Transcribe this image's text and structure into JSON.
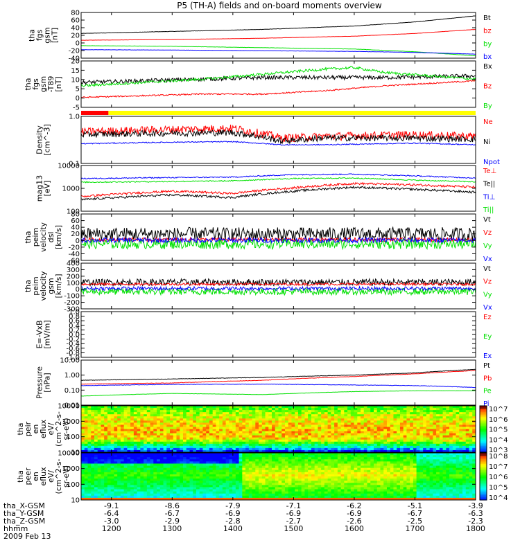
{
  "title": "P5 (TH-A) fields and on-board moments overview",
  "colors": {
    "black": "#000000",
    "red": "#ff0000",
    "green": "#00e000",
    "blue": "#0000ff",
    "yellow": "#ffff00"
  },
  "chart_data": {
    "type": "line",
    "x_range": [
      1150,
      1800
    ],
    "x_ticks": [
      "1200",
      "1300",
      "1400",
      "1500",
      "1600",
      "1700",
      "1800"
    ],
    "panels": [
      {
        "ylabel": [
          "tha",
          "fgs",
          "gsm",
          "[nT]"
        ],
        "yticks": [
          "80",
          "60",
          "40",
          "20",
          "0",
          "-20",
          "-40"
        ],
        "ylim": [
          -45,
          90
        ],
        "scale": "linear",
        "series": [
          {
            "name": "Bt",
            "color": "#000000",
            "noise": 0.4,
            "x": [
              1150,
              1300,
              1450,
              1600,
              1700,
              1800
            ],
            "y": [
              28,
              34,
              40,
              50,
              62,
              80
            ]
          },
          {
            "name": "bz",
            "color": "#ff0000",
            "noise": 0.3,
            "x": [
              1150,
              1300,
              1450,
              1600,
              1700,
              1800
            ],
            "y": [
              8,
              10,
              14,
              20,
              28,
              40
            ]
          },
          {
            "name": "by",
            "color": "#00e000",
            "noise": 0.3,
            "x": [
              1150,
              1300,
              1450,
              1600,
              1700,
              1800
            ],
            "y": [
              -8,
              -10,
              -14,
              -18,
              -26,
              -38
            ]
          },
          {
            "name": "bx",
            "color": "#0000ff",
            "noise": 0.3,
            "x": [
              1150,
              1300,
              1450,
              1600,
              1700,
              1800
            ],
            "y": [
              -20,
              -21,
              -23,
              -25,
              -28,
              -33
            ]
          }
        ]
      },
      {
        "ylabel": [
          "tha",
          "fgs",
          "gsm",
          "-T89",
          "[nT]"
        ],
        "yticks": [
          "20",
          "15",
          "10",
          "5",
          "0",
          "-5"
        ],
        "ylim": [
          -8,
          20
        ],
        "scale": "linear",
        "series": [
          {
            "name": "Bx",
            "color": "#000000",
            "noise": 1.2,
            "x": [
              1150,
              1250,
              1350,
              1450,
              1550,
              1650,
              1800
            ],
            "y": [
              7,
              8,
              9,
              10,
              10,
              10,
              11
            ]
          },
          {
            "name": "Bz",
            "color": "#ff0000",
            "noise": 0.4,
            "x": [
              1150,
              1250,
              1350,
              1450,
              1550,
              1650,
              1800
            ],
            "y": [
              -2,
              -1,
              0,
              0,
              2,
              5,
              8
            ]
          },
          {
            "name": "By",
            "color": "#00e000",
            "noise": 0.8,
            "x": [
              1150,
              1250,
              1350,
              1450,
              1550,
              1600,
              1650,
              1800
            ],
            "y": [
              5,
              7,
              9,
              12,
              15,
              16,
              13,
              9
            ]
          }
        ]
      },
      {
        "ylabel": [
          "Density",
          "[cm^-3]"
        ],
        "yticks": [
          "1.0",
          "0.1"
        ],
        "ylim": [
          0.1,
          1.6
        ],
        "scale": "log",
        "bar": {
          "red_until": 1195,
          "colors": [
            "#ff0000",
            "#ffff00"
          ]
        },
        "series": [
          {
            "name": "Ne",
            "color": "#ff0000",
            "noise": 0.08,
            "x": [
              1150,
              1300,
              1400,
              1480,
              1550,
              1700,
              1800
            ],
            "y": [
              0.65,
              0.75,
              0.8,
              0.45,
              0.5,
              0.55,
              0.5
            ]
          },
          {
            "name": "Ni",
            "color": "#000000",
            "noise": 0.06,
            "x": [
              1150,
              1300,
              1400,
              1480,
              1550,
              1700,
              1800
            ],
            "y": [
              0.55,
              0.6,
              0.62,
              0.38,
              0.45,
              0.45,
              0.42
            ]
          },
          {
            "name": "Npot",
            "color": "#0000ff",
            "noise": 0.01,
            "x": [
              1150,
              1300,
              1400,
              1480,
              1550,
              1700,
              1800
            ],
            "y": [
              0.32,
              0.35,
              0.36,
              0.3,
              0.3,
              0.33,
              0.3
            ]
          }
        ]
      },
      {
        "ylabel": [
          "mag13",
          "[eV]"
        ],
        "yticks": [
          "10000",
          "1000",
          "100"
        ],
        "ylim": [
          100,
          15000
        ],
        "scale": "log",
        "series": [
          {
            "name": "Te⊥",
            "color": "#ff0000",
            "noise": 0.04,
            "x": [
              1150,
              1300,
              1400,
              1500,
              1600,
              1700,
              1800
            ],
            "y": [
              500,
              900,
              700,
              1300,
              2100,
              1800,
              1400
            ]
          },
          {
            "name": "Te||",
            "color": "#000000",
            "noise": 0.04,
            "x": [
              1150,
              1300,
              1400,
              1500,
              1600,
              1700,
              1800
            ],
            "y": [
              350,
              600,
              450,
              900,
              1400,
              1100,
              800
            ]
          },
          {
            "name": "Ti⊥",
            "color": "#0000ff",
            "noise": 0.02,
            "x": [
              1150,
              1300,
              1400,
              1500,
              1600,
              1700,
              1800
            ],
            "y": [
              3600,
              4000,
              4200,
              5500,
              5800,
              4800,
              3800
            ]
          },
          {
            "name": "Ti||",
            "color": "#00e000",
            "noise": 0.02,
            "x": [
              1150,
              1300,
              1400,
              1500,
              1600,
              1700,
              1800
            ],
            "y": [
              2400,
              2600,
              2800,
              3600,
              3800,
              3000,
              2500
            ]
          }
        ]
      },
      {
        "ylabel": [
          "tha",
          "peim",
          "velocity",
          "dsl",
          "[km/s]"
        ],
        "yticks": [
          "80",
          "60",
          "40",
          "20",
          "0",
          "-20",
          "-40",
          "-60"
        ],
        "ylim": [
          -65,
          85
        ],
        "scale": "linear",
        "series": [
          {
            "name": "Vt",
            "color": "#000000",
            "noise": 22,
            "x": [
              1150,
              1800
            ],
            "y": [
              20,
              20
            ]
          },
          {
            "name": "Vz",
            "color": "#ff0000",
            "noise": 6,
            "x": [
              1150,
              1800
            ],
            "y": [
              2,
              2
            ]
          },
          {
            "name": "Vy",
            "color": "#00e000",
            "noise": 16,
            "x": [
              1150,
              1800
            ],
            "y": [
              -12,
              -12
            ]
          },
          {
            "name": "Vx",
            "color": "#0000ff",
            "noise": 8,
            "x": [
              1150,
              1800
            ],
            "y": [
              0,
              0
            ]
          }
        ]
      },
      {
        "ylabel": [
          "tha",
          "peim",
          "velocity",
          "gsm",
          "[km/s]"
        ],
        "yticks": [
          "400",
          "300",
          "200",
          "100",
          "0",
          "-100",
          "-200",
          "-300"
        ],
        "ylim": [
          -320,
          420
        ],
        "scale": "linear",
        "series": [
          {
            "name": "Vt",
            "color": "#000000",
            "noise": 55,
            "x": [
              1150,
              1800
            ],
            "y": [
              110,
              110
            ]
          },
          {
            "name": "Vz",
            "color": "#ff0000",
            "noise": 20,
            "x": [
              1150,
              1800
            ],
            "y": [
              80,
              80
            ]
          },
          {
            "name": "Vy",
            "color": "#00e000",
            "noise": 55,
            "x": [
              1150,
              1800
            ],
            "y": [
              -40,
              -40
            ]
          },
          {
            "name": "Vx",
            "color": "#0000ff",
            "noise": 30,
            "x": [
              1150,
              1800
            ],
            "y": [
              10,
              10
            ]
          }
        ]
      },
      {
        "ylabel": [
          "E=-VxB",
          "[mV/m]"
        ],
        "yticks": [
          "1.0",
          "0.8",
          "0.6",
          "0.4",
          "0.2",
          "0.0",
          "-0.2",
          "-0.4",
          "-0.6",
          "-0.8",
          "-1.0"
        ],
        "ylim": [
          -1.0,
          1.0
        ],
        "scale": "linear",
        "series": [
          {
            "name": "Ez",
            "color": "#ff0000",
            "x": [],
            "y": []
          },
          {
            "name": "Ey",
            "color": "#00e000",
            "x": [],
            "y": []
          },
          {
            "name": "Ex",
            "color": "#0000ff",
            "x": [],
            "y": []
          }
        ]
      },
      {
        "ylabel": [
          "Pressure",
          "[nPa]"
        ],
        "yticks": [
          "10.00",
          "1.00",
          "0.10",
          "0.01"
        ],
        "ylim": [
          0.01,
          10
        ],
        "scale": "log",
        "series": [
          {
            "name": "Pt",
            "color": "#000000",
            "noise": 0.01,
            "x": [
              1150,
              1300,
              1450,
              1600,
              1700,
              1800
            ],
            "y": [
              0.45,
              0.55,
              0.7,
              1.0,
              1.4,
              2.4
            ]
          },
          {
            "name": "Pb",
            "color": "#ff0000",
            "noise": 0.01,
            "x": [
              1150,
              1300,
              1450,
              1600,
              1700,
              1800
            ],
            "y": [
              0.25,
              0.3,
              0.45,
              0.8,
              1.2,
              2.0
            ]
          },
          {
            "name": "Pe",
            "color": "#00e000",
            "noise": 0.005,
            "x": [
              1150,
              1300,
              1450,
              1600,
              1700,
              1800
            ],
            "y": [
              0.04,
              0.06,
              0.05,
              0.08,
              0.09,
              0.09
            ]
          },
          {
            "name": "Pi",
            "color": "#0000ff",
            "noise": 0.01,
            "x": [
              1150,
              1300,
              1450,
              1600,
              1700,
              1800
            ],
            "y": [
              0.2,
              0.24,
              0.25,
              0.22,
              0.2,
              0.15
            ]
          }
        ]
      },
      {
        "type": "heatmap",
        "ylabel": [
          "tha",
          "peir",
          "en",
          "eflux",
          "eV/",
          "(cm^2-s-",
          "sr-eV)"
        ],
        "yticks": [
          "10000",
          "1000",
          "100",
          "10"
        ],
        "colorbar": [
          "10^7",
          "10^6",
          "10^5",
          "10^4",
          "10^3"
        ]
      },
      {
        "type": "heatmap",
        "ylabel": [
          "tha",
          "peer",
          "en",
          "eflux",
          "eV/",
          "(cm^2-s-",
          "sr-eV)"
        ],
        "yticks": [
          "10000",
          "1000",
          "100",
          "10"
        ],
        "colorbar": [
          "10^8",
          "10^7",
          "10^6",
          "10^5",
          "10^4"
        ]
      }
    ],
    "footer": {
      "rows": [
        {
          "label": "tha_X-GSM",
          "values": [
            "-9.1",
            "-8.6",
            "-7.9",
            "-7.1",
            "-6.2",
            "-5.1",
            "-3.9"
          ]
        },
        {
          "label": "tha_Y-GSM",
          "values": [
            "-6.4",
            "-6.7",
            "-6.9",
            "-6.9",
            "-6.9",
            "-6.7",
            "-6.3"
          ]
        },
        {
          "label": "tha_Z-GSM",
          "values": [
            "-3.0",
            "-2.9",
            "-2.8",
            "-2.7",
            "-2.6",
            "-2.5",
            "-2.3"
          ]
        },
        {
          "label": "hhmm",
          "values": [
            "1200",
            "1300",
            "1400",
            "1500",
            "1600",
            "1700",
            "1800"
          ]
        }
      ],
      "date": "2009 Feb 13"
    }
  }
}
